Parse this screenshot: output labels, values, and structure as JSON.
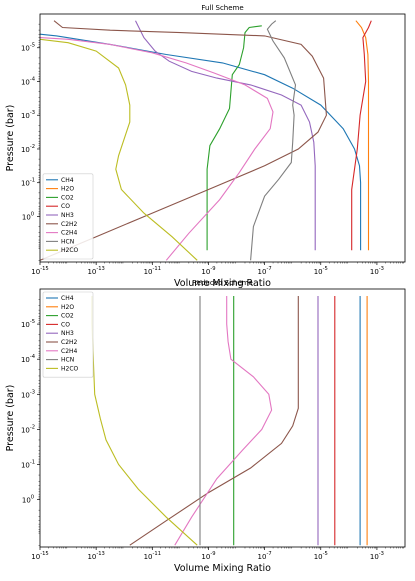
{
  "chart_data": [
    {
      "type": "line",
      "title": "Full Scheme",
      "xlabel": "Volume Mixing Ratio",
      "ylabel": "Pressure (bar)",
      "xscale": "log",
      "yscale": "log",
      "yinverted": true,
      "xlim": [
        1e-15,
        0.01
      ],
      "ylim": [
        1e-06,
        10
      ],
      "xticks": [
        -15,
        -13,
        -11,
        -9,
        -7,
        -5,
        -3
      ],
      "yticks": [
        -5,
        -4,
        -3,
        -2,
        -1,
        0
      ],
      "legend_loc": "lower left",
      "series": [
        {
          "name": "CH4",
          "color": "#1f77b4",
          "points": [
            [
              -3.58,
              1
            ],
            [
              -3.58,
              -1
            ],
            [
              -3.62,
              -1.5
            ],
            [
              -3.8,
              -2
            ],
            [
              -4.2,
              -2.6
            ],
            [
              -5,
              -3.3
            ],
            [
              -6,
              -3.8
            ],
            [
              -7,
              -4.2
            ],
            [
              -8.5,
              -4.55
            ],
            [
              -10.5,
              -4.8
            ],
            [
              -12.5,
              -5.1
            ],
            [
              -14.4,
              -5.35
            ],
            [
              -15,
              -5.4
            ]
          ]
        },
        {
          "name": "H2O",
          "color": "#ff7f0e",
          "points": [
            [
              -3.3,
              1
            ],
            [
              -3.3,
              -4
            ],
            [
              -3.32,
              -4.8
            ],
            [
              -3.4,
              -5.3
            ],
            [
              -3.55,
              -5.6
            ],
            [
              -3.75,
              -5.8
            ]
          ]
        },
        {
          "name": "CO2",
          "color": "#2ca02c",
          "points": [
            [
              -9.05,
              1
            ],
            [
              -9.05,
              -1.4
            ],
            [
              -8.95,
              -2.1
            ],
            [
              -8.6,
              -2.6
            ],
            [
              -8.25,
              -3.2
            ],
            [
              -8.2,
              -3.7
            ],
            [
              -8.15,
              -4.2
            ],
            [
              -7.9,
              -4.5
            ],
            [
              -7.75,
              -5
            ],
            [
              -7.7,
              -5.45
            ],
            [
              -7.55,
              -5.6
            ],
            [
              -7.1,
              -5.65
            ]
          ]
        },
        {
          "name": "CO",
          "color": "#d62728",
          "points": [
            [
              -3.9,
              1
            ],
            [
              -3.9,
              -0.8
            ],
            [
              -3.7,
              -2
            ],
            [
              -3.6,
              -3
            ],
            [
              -3.4,
              -4
            ],
            [
              -3.45,
              -4.8
            ],
            [
              -3.5,
              -5.3
            ],
            [
              -3.3,
              -5.6
            ],
            [
              -3.2,
              -5.8
            ]
          ]
        },
        {
          "name": "NH3",
          "color": "#9467bd",
          "points": [
            [
              -5.2,
              1
            ],
            [
              -5.2,
              -1.5
            ],
            [
              -5.25,
              -2.2
            ],
            [
              -5.4,
              -2.8
            ],
            [
              -5.7,
              -3.3
            ],
            [
              -6.4,
              -3.6
            ],
            [
              -7.5,
              -3.9
            ],
            [
              -8.7,
              -4.1
            ],
            [
              -9.6,
              -4.3
            ],
            [
              -10.4,
              -4.6
            ],
            [
              -10.9,
              -4.9
            ],
            [
              -11.3,
              -5.3
            ],
            [
              -11.6,
              -5.8
            ]
          ]
        },
        {
          "name": "C2H2",
          "color": "#8c564b",
          "points": [
            [
              -15,
              1.3
            ],
            [
              -13,
              0.6
            ],
            [
              -11,
              -0.1
            ],
            [
              -9,
              -0.8
            ],
            [
              -7,
              -1.5
            ],
            [
              -5.8,
              -2.0
            ],
            [
              -5.1,
              -2.5
            ],
            [
              -4.8,
              -3
            ],
            [
              -4.9,
              -4.1
            ],
            [
              -5.3,
              -4.75
            ],
            [
              -5.7,
              -5.1
            ],
            [
              -7,
              -5.35
            ],
            [
              -10,
              -5.45
            ],
            [
              -12.5,
              -5.52
            ],
            [
              -14.2,
              -5.6
            ],
            [
              -14.5,
              -5.8
            ]
          ]
        },
        {
          "name": "C2H4",
          "color": "#e377c2",
          "points": [
            [
              -10.5,
              1.3
            ],
            [
              -9.7,
              0.5
            ],
            [
              -8.6,
              -0.5
            ],
            [
              -7.9,
              -1.3
            ],
            [
              -7.35,
              -2
            ],
            [
              -6.8,
              -2.6
            ],
            [
              -6.7,
              -3.1
            ],
            [
              -6.9,
              -3.5
            ],
            [
              -7.7,
              -3.9
            ],
            [
              -8.8,
              -4.25
            ],
            [
              -9.8,
              -4.55
            ],
            [
              -11,
              -4.85
            ],
            [
              -12.5,
              -5.1
            ],
            [
              -14,
              -5.25
            ],
            [
              -15,
              -5.3
            ]
          ]
        },
        {
          "name": "HCN",
          "color": "#7f7f7f",
          "points": [
            [
              -7.5,
              1.3
            ],
            [
              -7.4,
              0.3
            ],
            [
              -7.0,
              -0.6
            ],
            [
              -6.5,
              -1.1
            ],
            [
              -6.05,
              -1.6
            ],
            [
              -6.0,
              -2.2
            ],
            [
              -5.95,
              -3
            ],
            [
              -6.0,
              -3.3
            ],
            [
              -5.9,
              -3.9
            ],
            [
              -6.3,
              -4.7
            ],
            [
              -6.7,
              -5.2
            ],
            [
              -6.9,
              -5.55
            ],
            [
              -6.75,
              -5.7
            ],
            [
              -6.6,
              -5.8
            ]
          ]
        },
        {
          "name": "H2CO",
          "color": "#bcbd22",
          "points": [
            [
              -9.4,
              1.3
            ],
            [
              -10.3,
              0.6
            ],
            [
              -11.3,
              -0.1
            ],
            [
              -12.1,
              -0.8
            ],
            [
              -12.3,
              -1.4
            ],
            [
              -12.2,
              -1.8
            ],
            [
              -12.0,
              -2.3
            ],
            [
              -11.8,
              -2.8
            ],
            [
              -11.8,
              -3.3
            ],
            [
              -11.95,
              -3.9
            ],
            [
              -12.2,
              -4.4
            ],
            [
              -13,
              -4.9
            ],
            [
              -14,
              -5.15
            ],
            [
              -15,
              -5.25
            ]
          ]
        }
      ]
    },
    {
      "type": "line",
      "title": "Reduced Scheme",
      "xlabel": "Volume Mixing Ratio",
      "ylabel": "Pressure (bar)",
      "xscale": "log",
      "yscale": "log",
      "yinverted": true,
      "xlim": [
        1e-15,
        0.01
      ],
      "ylim": [
        1e-06,
        10
      ],
      "xticks": [
        -15,
        -13,
        -11,
        -9,
        -7,
        -5,
        -3
      ],
      "yticks": [
        -5,
        -4,
        -3,
        -2,
        -1,
        0
      ],
      "legend_loc": "upper left",
      "series": [
        {
          "name": "CH4",
          "color": "#1f77b4",
          "points": [
            [
              -3.6,
              1.3
            ],
            [
              -3.6,
              -5.8
            ]
          ]
        },
        {
          "name": "H2O",
          "color": "#ff7f0e",
          "points": [
            [
              -3.35,
              1.3
            ],
            [
              -3.35,
              -5.8
            ]
          ]
        },
        {
          "name": "CO2",
          "color": "#2ca02c",
          "points": [
            [
              -8.1,
              1.3
            ],
            [
              -8.1,
              -5.8
            ]
          ]
        },
        {
          "name": "CO",
          "color": "#d62728",
          "points": [
            [
              -4.5,
              1.3
            ],
            [
              -4.5,
              -5.8
            ]
          ]
        },
        {
          "name": "NH3",
          "color": "#9467bd",
          "points": [
            [
              -5.1,
              1.3
            ],
            [
              -5.1,
              -5.8
            ]
          ]
        },
        {
          "name": "C2H2",
          "color": "#8c564b",
          "points": [
            [
              -11.8,
              1.3
            ],
            [
              -10.5,
              0.6
            ],
            [
              -9,
              -0.2
            ],
            [
              -7.5,
              -0.9
            ],
            [
              -6.4,
              -1.6
            ],
            [
              -6.0,
              -2.1
            ],
            [
              -5.8,
              -2.6
            ],
            [
              -5.8,
              -5.8
            ]
          ]
        },
        {
          "name": "C2H4",
          "color": "#e377c2",
          "points": [
            [
              -10.2,
              1.3
            ],
            [
              -9.6,
              0.5
            ],
            [
              -8.7,
              -0.6
            ],
            [
              -7.8,
              -1.4
            ],
            [
              -7.1,
              -2
            ],
            [
              -6.75,
              -2.55
            ],
            [
              -6.85,
              -3.0
            ],
            [
              -7.4,
              -3.5
            ],
            [
              -8.2,
              -4
            ],
            [
              -8.3,
              -4.5
            ],
            [
              -8.35,
              -5
            ],
            [
              -8.35,
              -5.8
            ]
          ]
        },
        {
          "name": "HCN",
          "color": "#7f7f7f",
          "points": [
            [
              -9.3,
              1.3
            ],
            [
              -9.3,
              -5.8
            ]
          ]
        },
        {
          "name": "H2CO",
          "color": "#bcbd22",
          "points": [
            [
              -9.4,
              1.3
            ],
            [
              -10.5,
              0.5
            ],
            [
              -11.5,
              -0.3
            ],
            [
              -12.2,
              -1
            ],
            [
              -12.65,
              -1.7
            ],
            [
              -12.85,
              -2.3
            ],
            [
              -13.05,
              -3
            ],
            [
              -13.1,
              -4
            ],
            [
              -13.15,
              -5
            ],
            [
              -13.15,
              -5.8
            ]
          ]
        }
      ]
    }
  ]
}
